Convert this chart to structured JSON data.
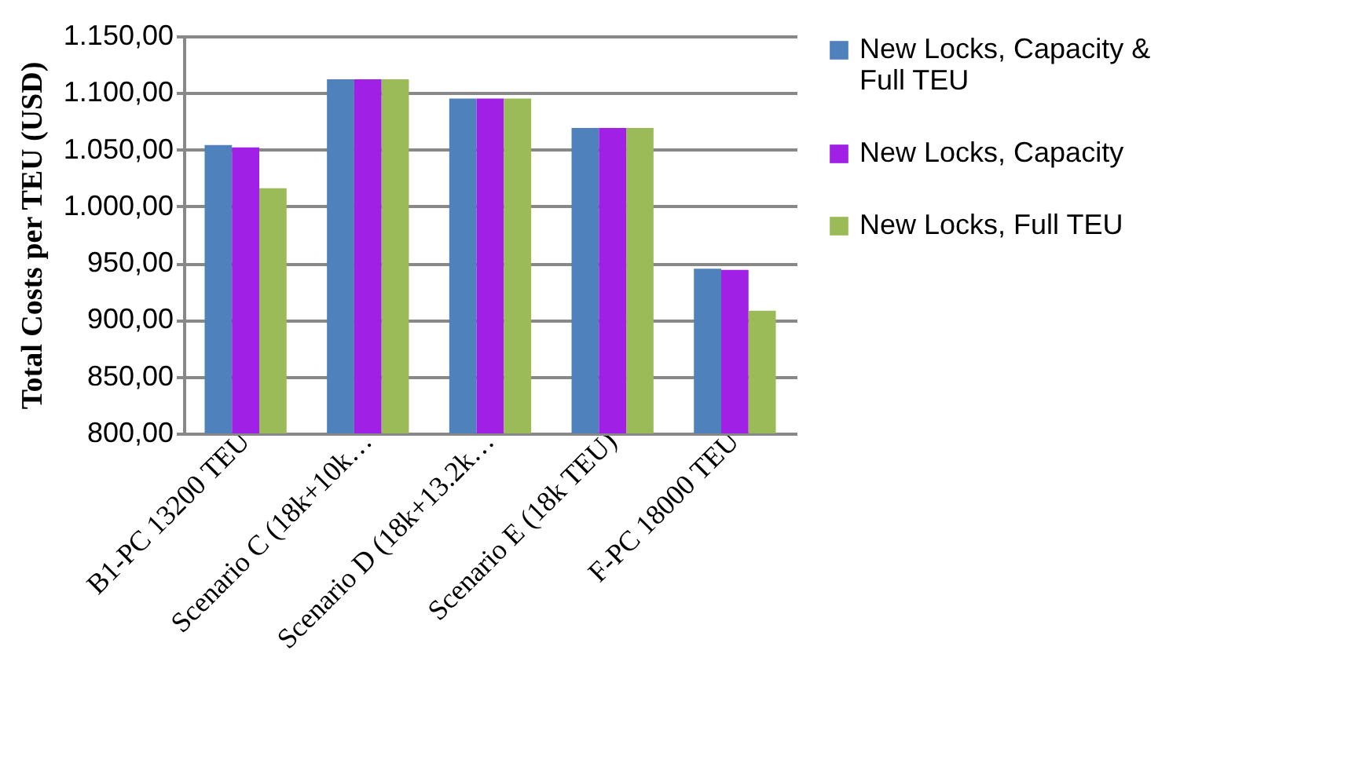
{
  "chart_data": {
    "type": "bar",
    "ylabel": "Total Costs per TEU (USD)",
    "categories": [
      "B1-PC 13200 TEU",
      "Scenario C (18k+10k…",
      "Scenario D (18k+13.2k…",
      "Scenario E (18k TEU)",
      "F-PC 18000 TEU"
    ],
    "series": [
      {
        "name": "New Locks, Capacity & Full TEU",
        "color": "#4f81bd",
        "values": [
          1054,
          1112,
          1095,
          1069,
          945
        ]
      },
      {
        "name": "New Locks, Capacity",
        "color": "#a020e6",
        "values": [
          1052,
          1112,
          1095,
          1069,
          944
        ]
      },
      {
        "name": "New Locks, Full TEU",
        "color": "#9bbb59",
        "values": [
          1016,
          1112,
          1095,
          1069,
          908
        ]
      }
    ],
    "ylim": [
      800,
      1150
    ],
    "yticks": [
      {
        "value": 800,
        "label": "800,00"
      },
      {
        "value": 850,
        "label": "850,00"
      },
      {
        "value": 900,
        "label": "900,00"
      },
      {
        "value": 950,
        "label": "950,00"
      },
      {
        "value": 1000,
        "label": "1.000,00"
      },
      {
        "value": 1050,
        "label": "1.050,00"
      },
      {
        "value": 1100,
        "label": "1.100,00"
      },
      {
        "value": 1150,
        "label": "1.150,00"
      }
    ],
    "grid": "y",
    "legend": "right"
  }
}
